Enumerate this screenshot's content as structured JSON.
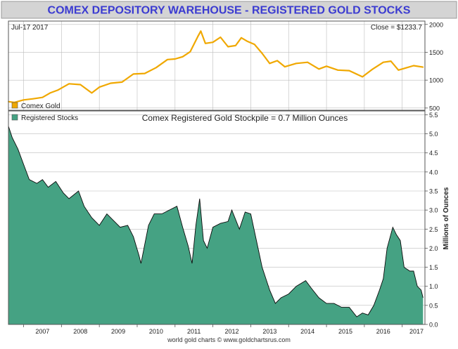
{
  "header": {
    "title": "COMEX DEPOSITORY WAREHOUSE - REGISTERED GOLD STOCKS"
  },
  "footer": {
    "credit": "world gold charts © www.goldchartsrus.com"
  },
  "colors": {
    "title_bg": "#d4d4d4",
    "title_text": "#3b3bd1",
    "gold_line": "#f0a800",
    "stocks_fill": "#45a283",
    "stocks_edge": "#0a0a0a",
    "gridline": "#bcbcbc",
    "axis_text": "#222222"
  },
  "chart_data": [
    {
      "type": "line",
      "date_label": "Jul-17  2017",
      "close_label": "Close = $1233.7",
      "ylim": [
        460,
        2060
      ],
      "yticks": [
        500,
        1000,
        1500,
        2000
      ],
      "xlim": [
        2006.6,
        2017.6
      ],
      "legend": {
        "position": "bottom-left",
        "entries": [
          {
            "name": "Comex Gold",
            "color": "#f0a800"
          }
        ]
      },
      "series": [
        {
          "name": "Comex Gold",
          "x": [
            2006.6,
            2006.75,
            2007.0,
            2007.25,
            2007.5,
            2007.7,
            2007.9,
            2008.2,
            2008.5,
            2008.8,
            2009.0,
            2009.3,
            2009.6,
            2009.9,
            2010.2,
            2010.5,
            2010.8,
            2011.0,
            2011.2,
            2011.4,
            2011.6,
            2011.68,
            2011.8,
            2012.0,
            2012.2,
            2012.4,
            2012.6,
            2012.75,
            2012.9,
            2013.1,
            2013.3,
            2013.5,
            2013.7,
            2013.9,
            2014.2,
            2014.5,
            2014.8,
            2015.0,
            2015.3,
            2015.6,
            2015.95,
            2016.2,
            2016.5,
            2016.7,
            2016.9,
            2017.1,
            2017.3,
            2017.55
          ],
          "values": [
            615,
            600,
            645,
            665,
            690,
            770,
            820,
            935,
            920,
            770,
            875,
            945,
            965,
            1110,
            1120,
            1225,
            1370,
            1380,
            1420,
            1510,
            1780,
            1880,
            1660,
            1680,
            1770,
            1600,
            1620,
            1760,
            1700,
            1640,
            1480,
            1300,
            1350,
            1240,
            1300,
            1320,
            1200,
            1250,
            1180,
            1170,
            1060,
            1190,
            1320,
            1340,
            1180,
            1220,
            1260,
            1234
          ]
        }
      ]
    },
    {
      "type": "area",
      "title": "Comex Registered Gold Stockpile = 0.7 Million Ounces",
      "ylabel": "Millions of Ounces",
      "ylim": [
        0,
        5.6
      ],
      "yticks": [
        0.0,
        0.5,
        1.0,
        1.5,
        2.0,
        2.5,
        3.0,
        3.5,
        4.0,
        4.5,
        5.0,
        5.5
      ],
      "xlim": [
        2006.6,
        2017.6
      ],
      "xticks": [
        "2007",
        "2008",
        "2009",
        "2010",
        "2011",
        "2012",
        "2013",
        "2014",
        "2015",
        "2016",
        "2017"
      ],
      "legend": {
        "position": "top-left",
        "entries": [
          {
            "name": "Registered Stocks",
            "color": "#45a283"
          }
        ]
      },
      "series": [
        {
          "name": "Registered Stocks",
          "x": [
            2006.6,
            2006.7,
            2006.85,
            2007.0,
            2007.15,
            2007.35,
            2007.5,
            2007.65,
            2007.85,
            2008.05,
            2008.2,
            2008.45,
            2008.6,
            2008.8,
            2009.0,
            2009.2,
            2009.4,
            2009.55,
            2009.75,
            2009.9,
            2010.05,
            2010.1,
            2010.3,
            2010.45,
            2010.65,
            2010.85,
            2011.05,
            2011.2,
            2011.35,
            2011.45,
            2011.55,
            2011.65,
            2011.75,
            2011.85,
            2012.0,
            2012.2,
            2012.4,
            2012.5,
            2012.7,
            2012.85,
            2013.0,
            2013.15,
            2013.3,
            2013.5,
            2013.65,
            2013.8,
            2014.0,
            2014.2,
            2014.45,
            2014.6,
            2014.8,
            2015.0,
            2015.2,
            2015.4,
            2015.6,
            2015.8,
            2015.95,
            2016.1,
            2016.25,
            2016.4,
            2016.5,
            2016.6,
            2016.75,
            2016.85,
            2016.95,
            2017.05,
            2017.2,
            2017.3,
            2017.4,
            2017.5,
            2017.55
          ],
          "values": [
            5.2,
            4.9,
            4.6,
            4.2,
            3.8,
            3.7,
            3.8,
            3.6,
            3.75,
            3.45,
            3.3,
            3.5,
            3.1,
            2.8,
            2.6,
            2.9,
            2.7,
            2.55,
            2.6,
            2.3,
            1.8,
            1.6,
            2.6,
            2.9,
            2.9,
            3.0,
            3.1,
            2.55,
            2.05,
            1.6,
            2.6,
            3.3,
            2.2,
            2.0,
            2.55,
            2.65,
            2.7,
            3.0,
            2.5,
            2.95,
            2.9,
            2.2,
            1.5,
            0.9,
            0.55,
            0.7,
            0.8,
            1.0,
            1.15,
            0.95,
            0.7,
            0.55,
            0.55,
            0.45,
            0.45,
            0.2,
            0.3,
            0.25,
            0.5,
            0.9,
            1.2,
            2.0,
            2.55,
            2.35,
            2.2,
            1.5,
            1.4,
            1.4,
            1.0,
            0.9,
            0.7
          ]
        }
      ]
    }
  ]
}
